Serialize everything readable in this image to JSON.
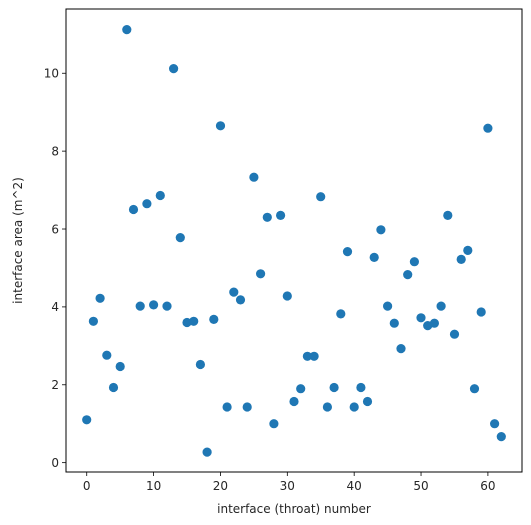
{
  "chart_data": {
    "type": "scatter",
    "title": "",
    "xlabel": "interface (throat) number",
    "ylabel": "interface area (m^2)",
    "xlim": [
      -3.1,
      65.1
    ],
    "ylim": [
      -0.24,
      11.65
    ],
    "xticks": [
      0,
      10,
      20,
      30,
      40,
      50,
      60
    ],
    "yticks": [
      0,
      2,
      4,
      6,
      8,
      10
    ],
    "grid": false,
    "marker_color": "#1f77b4",
    "series": [
      {
        "x": [
          0,
          1,
          2,
          3,
          4,
          5,
          6,
          7,
          8,
          9,
          10,
          11,
          12,
          13,
          14,
          15,
          16,
          17,
          18,
          19,
          20,
          21,
          22,
          23,
          24,
          25,
          26,
          27,
          28,
          29,
          30,
          31,
          32,
          33,
          34,
          35,
          36,
          37,
          38,
          39,
          40,
          41,
          42,
          43,
          44,
          45,
          46,
          47,
          48,
          49,
          50,
          51,
          52,
          53,
          54,
          55,
          56,
          57,
          58,
          59,
          60,
          61,
          62
        ],
        "y": [
          1.1,
          3.63,
          4.22,
          2.76,
          1.93,
          2.47,
          11.12,
          6.5,
          4.02,
          6.65,
          4.05,
          6.86,
          4.02,
          10.12,
          5.78,
          3.6,
          3.63,
          2.52,
          0.27,
          3.68,
          8.65,
          1.43,
          4.38,
          4.18,
          1.43,
          7.33,
          4.85,
          6.3,
          1.0,
          6.35,
          4.28,
          1.57,
          1.9,
          2.73,
          2.73,
          6.83,
          1.43,
          1.93,
          3.82,
          5.42,
          1.43,
          1.93,
          1.57,
          5.27,
          5.98,
          4.02,
          3.58,
          2.93,
          4.83,
          5.16,
          3.72,
          3.52,
          3.58,
          4.02,
          6.35,
          3.3,
          5.22,
          5.45,
          1.9,
          3.87,
          8.59,
          1.0,
          0.67
        ]
      }
    ]
  }
}
